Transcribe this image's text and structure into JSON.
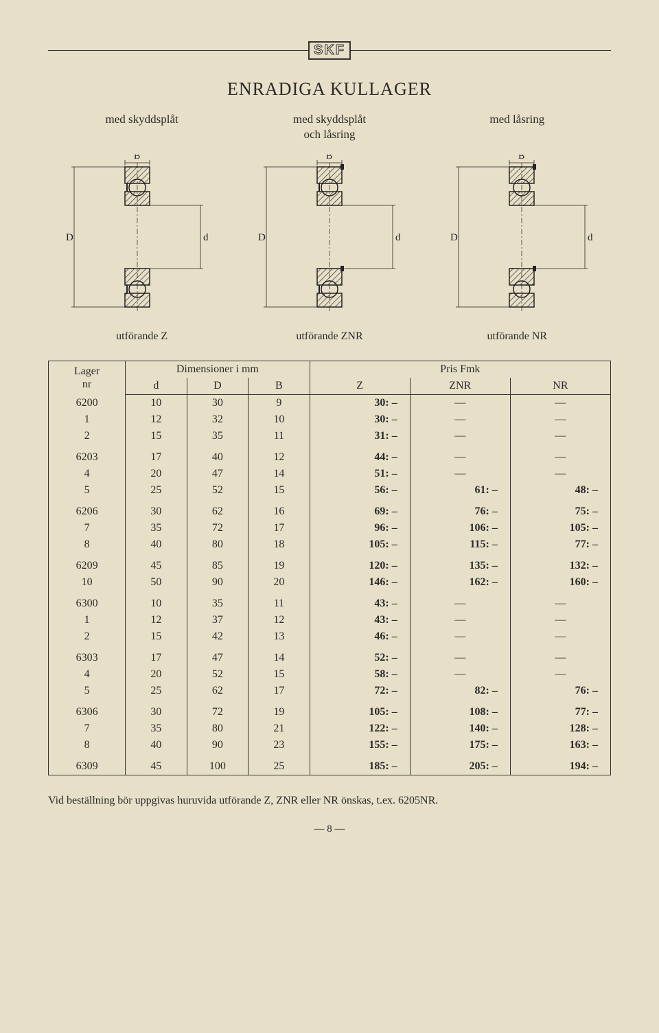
{
  "logo": "SKF",
  "title": "ENRADIGA KULLAGER",
  "subs": [
    "med skyddsplåt",
    "med skyddsplåt\noch låsring",
    "med låsring"
  ],
  "diag_labels": [
    "utförande Z",
    "utförande ZNR",
    "utförande NR"
  ],
  "table": {
    "header1": {
      "lager": "Lager",
      "nr": "nr",
      "dim": "Dimensioner i mm",
      "pris": "Pris Fmk"
    },
    "header2": [
      "d",
      "D",
      "B",
      "Z",
      "ZNR",
      "NR"
    ],
    "groups": [
      [
        {
          "nr": "6200",
          "d": "10",
          "D": "30",
          "B": "9",
          "Z": "30: –",
          "ZNR": "—",
          "NR": "—"
        },
        {
          "nr": "1",
          "d": "12",
          "D": "32",
          "B": "10",
          "Z": "30: –",
          "ZNR": "—",
          "NR": "—"
        },
        {
          "nr": "2",
          "d": "15",
          "D": "35",
          "B": "11",
          "Z": "31: –",
          "ZNR": "—",
          "NR": "—"
        }
      ],
      [
        {
          "nr": "6203",
          "d": "17",
          "D": "40",
          "B": "12",
          "Z": "44: –",
          "ZNR": "—",
          "NR": "—"
        },
        {
          "nr": "4",
          "d": "20",
          "D": "47",
          "B": "14",
          "Z": "51: –",
          "ZNR": "—",
          "NR": "—"
        },
        {
          "nr": "5",
          "d": "25",
          "D": "52",
          "B": "15",
          "Z": "56: –",
          "ZNR": "61: –",
          "NR": "48: –"
        }
      ],
      [
        {
          "nr": "6206",
          "d": "30",
          "D": "62",
          "B": "16",
          "Z": "69: –",
          "ZNR": "76: –",
          "NR": "75: –"
        },
        {
          "nr": "7",
          "d": "35",
          "D": "72",
          "B": "17",
          "Z": "96: –",
          "ZNR": "106: –",
          "NR": "105: –"
        },
        {
          "nr": "8",
          "d": "40",
          "D": "80",
          "B": "18",
          "Z": "105: –",
          "ZNR": "115: –",
          "NR": "77: –"
        }
      ],
      [
        {
          "nr": "6209",
          "d": "45",
          "D": "85",
          "B": "19",
          "Z": "120: –",
          "ZNR": "135: –",
          "NR": "132: –"
        },
        {
          "nr": "10",
          "d": "50",
          "D": "90",
          "B": "20",
          "Z": "146: –",
          "ZNR": "162: –",
          "NR": "160: –"
        }
      ],
      [
        {
          "nr": "6300",
          "d": "10",
          "D": "35",
          "B": "11",
          "Z": "43: –",
          "ZNR": "—",
          "NR": "—"
        },
        {
          "nr": "1",
          "d": "12",
          "D": "37",
          "B": "12",
          "Z": "43: –",
          "ZNR": "—",
          "NR": "—"
        },
        {
          "nr": "2",
          "d": "15",
          "D": "42",
          "B": "13",
          "Z": "46: –",
          "ZNR": "—",
          "NR": "—"
        }
      ],
      [
        {
          "nr": "6303",
          "d": "17",
          "D": "47",
          "B": "14",
          "Z": "52: –",
          "ZNR": "—",
          "NR": "—"
        },
        {
          "nr": "4",
          "d": "20",
          "D": "52",
          "B": "15",
          "Z": "58: –",
          "ZNR": "—",
          "NR": "—"
        },
        {
          "nr": "5",
          "d": "25",
          "D": "62",
          "B": "17",
          "Z": "72: –",
          "ZNR": "82: –",
          "NR": "76: –"
        }
      ],
      [
        {
          "nr": "6306",
          "d": "30",
          "D": "72",
          "B": "19",
          "Z": "105: –",
          "ZNR": "108: –",
          "NR": "77: –"
        },
        {
          "nr": "7",
          "d": "35",
          "D": "80",
          "B": "21",
          "Z": "122: –",
          "ZNR": "140: –",
          "NR": "128: –"
        },
        {
          "nr": "8",
          "d": "40",
          "D": "90",
          "B": "23",
          "Z": "155: –",
          "ZNR": "175: –",
          "NR": "163: –"
        }
      ],
      [
        {
          "nr": "6309",
          "d": "45",
          "D": "100",
          "B": "25",
          "Z": "185: –",
          "ZNR": "205: –",
          "NR": "194: –"
        }
      ]
    ]
  },
  "footnote": "Vid beställning bör uppgivas huruvida utförande Z, ZNR eller NR önskas, t.ex. 6205NR.",
  "pagenum": "— 8 —",
  "diagram": {
    "stroke": "#222",
    "hatch": "#333",
    "labels": {
      "D": "D",
      "d": "d",
      "B": "B"
    }
  }
}
